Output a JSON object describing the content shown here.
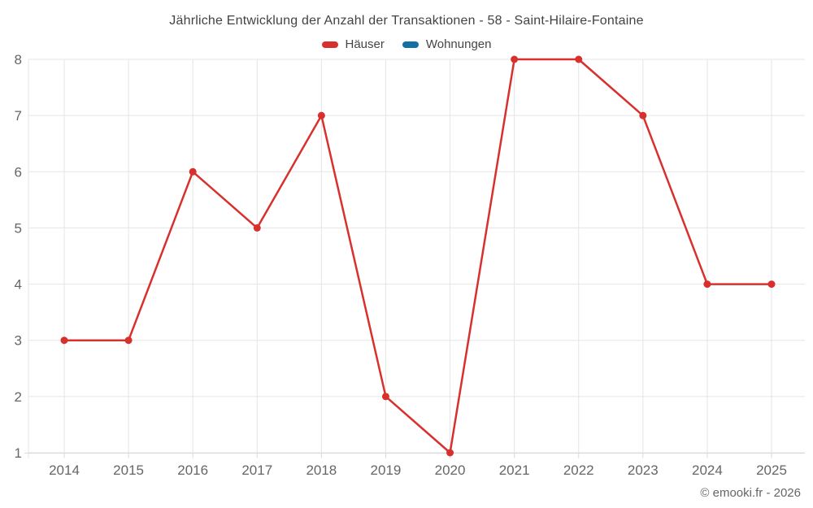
{
  "page": {
    "background_color": "#ffffff"
  },
  "chart_data": {
    "type": "line",
    "title": "Jährliche Entwicklung der Anzahl der Transaktionen - 58 - Saint-Hilaire-Fontaine",
    "categories": [
      "2014",
      "2015",
      "2016",
      "2017",
      "2018",
      "2019",
      "2020",
      "2021",
      "2022",
      "2023",
      "2024",
      "2025"
    ],
    "series": [
      {
        "name": "Häuser",
        "color": "#d8312d",
        "values": [
          3,
          3,
          6,
          5,
          7,
          2,
          1,
          8,
          8,
          7,
          4,
          4
        ]
      },
      {
        "name": "Wohnungen",
        "color": "#1470a4",
        "values": []
      }
    ],
    "xlabel": "",
    "ylabel": "",
    "ylim": [
      1,
      8
    ],
    "yticks": [
      1,
      2,
      3,
      4,
      5,
      6,
      7,
      8
    ],
    "grid": true,
    "legend_position": "top",
    "styles": {
      "gridline_color": "#e5e5e5",
      "axis_line_color": "#d9d9d9",
      "tick_label_color": "#666666",
      "line_width": 2.5,
      "point_radius": 4.5
    }
  },
  "footer": {
    "credit": "© emooki.fr - 2026"
  }
}
